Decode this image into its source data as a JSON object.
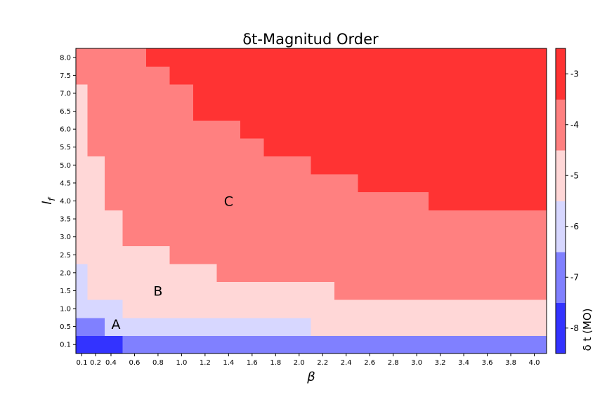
{
  "chart_data": {
    "type": "heatmap",
    "title": "δt-Magnitud Order",
    "xlabel": "β",
    "ylabel": "lf",
    "x_ticks": [
      "0.1",
      "0.2",
      "0.4",
      "0.6",
      "0.8",
      "1.0",
      "1.2",
      "1.4",
      "1.6",
      "1.8",
      "2.0",
      "2.2",
      "2.4",
      "2.6",
      "2.8",
      "3.0",
      "3.2",
      "3.4",
      "3.6",
      "3.8",
      "4.0"
    ],
    "y_ticks": [
      "0.1",
      "0.5",
      "1.0",
      "1.5",
      "2.0",
      "2.5",
      "3.0",
      "3.5",
      "4.0",
      "4.5",
      "5.0",
      "5.5",
      "6.0",
      "6.5",
      "7.0",
      "7.5",
      "8.0"
    ],
    "colorbar": {
      "label": "δ t (MO)",
      "ticks": [
        "-8",
        "-7",
        "-6",
        "-5",
        "-4",
        "-3"
      ],
      "levels": [
        -8,
        -7,
        -6,
        -5,
        -4,
        -3
      ],
      "colors": [
        "#3333ff",
        "#8080ff",
        "#d7d7ff",
        "#ffd7d7",
        "#ff8080",
        "#ff3333"
      ]
    },
    "region_boundaries": {
      "description_levels": "for each row (y index) the last x index that belongs to each level",
      "rows": [
        {
          "y": "0.1",
          "minus8_end": "0.4",
          "minus7_end": "4.0"
        },
        {
          "y": "0.5",
          "minus7_end": "0.2",
          "minus6_end": "2.0",
          "minus5_end": "4.0"
        },
        {
          "y": "1.0",
          "minus6_end": "0.4",
          "minus5_end": "4.0"
        },
        {
          "y": "1.5",
          "minus6_end": "0.1",
          "minus5_end": "2.2",
          "minus4_end": "4.0"
        },
        {
          "y": "2.0",
          "minus6_end": "0.1",
          "minus5_end": "1.2",
          "minus4_end": "4.0"
        },
        {
          "y": "2.5",
          "minus5_end": "0.8",
          "minus4_end": "4.0"
        },
        {
          "y": "3.0",
          "minus5_end": "0.4",
          "minus4_end": "4.0"
        },
        {
          "y": "3.5",
          "minus5_end": "0.4",
          "minus4_end": "4.0"
        },
        {
          "y": "4.0",
          "minus5_end": "0.2",
          "minus4_end": "3.0",
          "minus3_end": "4.0"
        },
        {
          "y": "4.5",
          "minus5_end": "0.2",
          "minus4_end": "2.4",
          "minus3_end": "4.0"
        },
        {
          "y": "5.0",
          "minus5_end": "0.2",
          "minus4_end": "2.0",
          "minus3_end": "4.0"
        },
        {
          "y": "5.5",
          "minus5_end": "0.1",
          "minus4_end": "1.6",
          "minus3_end": "4.0"
        },
        {
          "y": "6.0",
          "minus5_end": "0.1",
          "minus4_end": "1.4",
          "minus3_end": "4.0"
        },
        {
          "y": "6.5",
          "minus5_end": "0.1",
          "minus4_end": "1.0",
          "minus3_end": "4.0"
        },
        {
          "y": "7.0",
          "minus5_end": "0.1",
          "minus4_end": "1.0",
          "minus3_end": "4.0"
        },
        {
          "y": "7.5",
          "minus4_end": "0.8",
          "minus3_end": "4.0"
        },
        {
          "y": "8.0",
          "minus4_end": "0.6",
          "minus3_end": "4.0"
        }
      ]
    },
    "annotations": [
      {
        "text": "A",
        "x": "0.4",
        "y": "0.5"
      },
      {
        "text": "B",
        "x": "0.8",
        "y": "1.5"
      },
      {
        "text": "C",
        "x": "1.4",
        "y": "4.0"
      }
    ]
  }
}
